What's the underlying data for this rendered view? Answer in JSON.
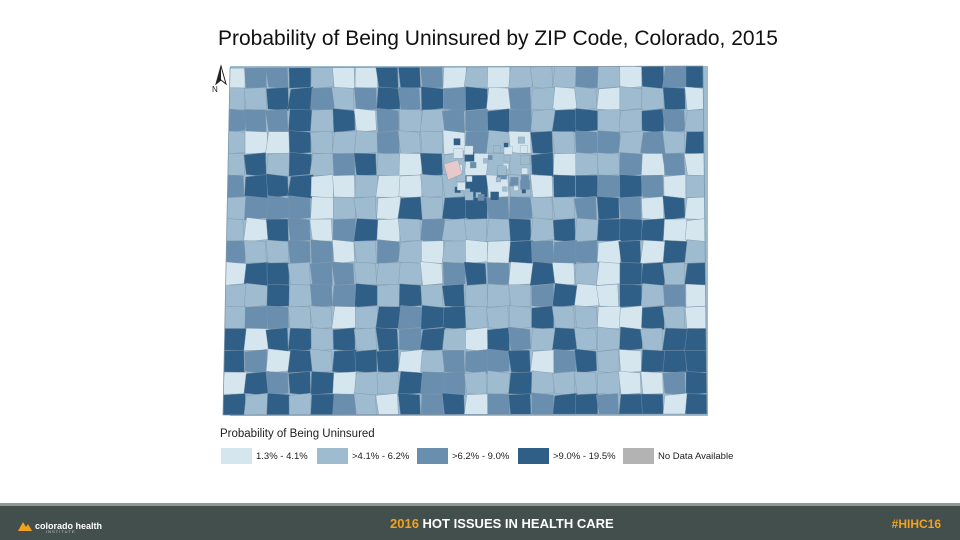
{
  "title": "Probability of Being Uninsured by ZIP Code, Colorado, 2015",
  "north_arrow_label": "N",
  "legend": {
    "title": "Probability of Being Uninsured",
    "items": [
      {
        "label": "1.3% - 4.1%",
        "color": "#d6e6ee"
      },
      {
        "label": ">4.1% - 6.2%",
        "color": "#9ebbd0"
      },
      {
        "label": ">6.2% - 9.0%",
        "color": "#6a8eae"
      },
      {
        "label": ">9.0% - 19.5%",
        "color": "#2f5f87"
      },
      {
        "label": "No Data Available",
        "color": "#b3b3b3"
      }
    ]
  },
  "footer": {
    "logo_text": "colorado health",
    "logo_subtext": "INSTITUTE",
    "event_year": "2016",
    "event_text": "HOT ISSUES IN HEALTH CARE",
    "hashtag": "#HIHC16",
    "accent_color": "#f4a21d"
  }
}
